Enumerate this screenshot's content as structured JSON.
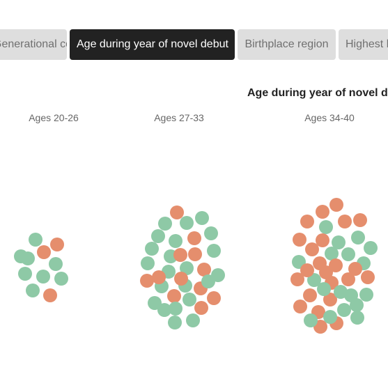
{
  "tabs": [
    {
      "label": "Generational cohort",
      "active": false
    },
    {
      "label": "Age during year of novel debut",
      "active": true
    },
    {
      "label": "Birthplace region",
      "active": false
    },
    {
      "label": "Highest level of education",
      "active": false
    }
  ],
  "chart": {
    "title": "Age during year of novel debut",
    "groups": [
      {
        "label": "Ages 20-26",
        "green": 8,
        "orange": 3
      },
      {
        "label": "Ages 27-33",
        "green": 22,
        "orange": 12
      },
      {
        "label": "Ages 34-40",
        "green": 18,
        "orange": 23
      }
    ]
  },
  "colors": {
    "green": "#8ec9a6",
    "orange": "#e58e6d",
    "active_tab": "#222222",
    "inactive_tab": "#dedede"
  }
}
